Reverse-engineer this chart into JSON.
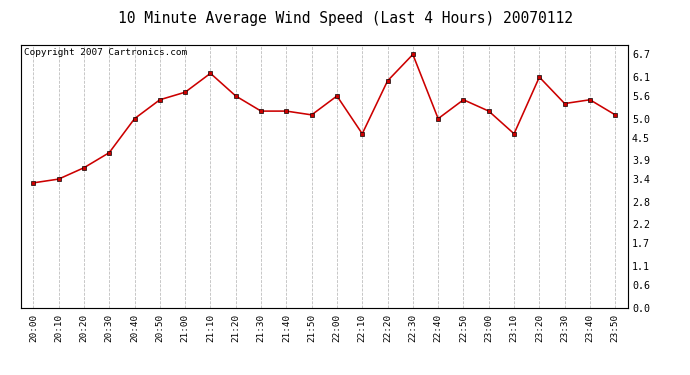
{
  "title": "10 Minute Average Wind Speed (Last 4 Hours) 20070112",
  "copyright": "Copyright 2007 Cartronics.com",
  "x_labels": [
    "20:00",
    "20:10",
    "20:20",
    "20:30",
    "20:40",
    "20:50",
    "21:00",
    "21:10",
    "21:20",
    "21:30",
    "21:40",
    "21:50",
    "22:00",
    "22:10",
    "22:20",
    "22:30",
    "22:40",
    "22:50",
    "23:00",
    "23:10",
    "23:20",
    "23:30",
    "23:40",
    "23:50"
  ],
  "y_values": [
    3.3,
    3.4,
    3.7,
    4.1,
    5.0,
    5.5,
    5.7,
    6.2,
    5.6,
    5.2,
    5.2,
    5.1,
    5.6,
    4.6,
    6.0,
    6.7,
    5.0,
    5.5,
    5.2,
    4.6,
    6.1,
    5.4,
    5.5,
    5.1
  ],
  "y_ticks": [
    0.0,
    0.6,
    1.1,
    1.7,
    2.2,
    2.8,
    3.4,
    3.9,
    4.5,
    5.0,
    5.6,
    6.1,
    6.7
  ],
  "ylim": [
    0.0,
    6.95
  ],
  "line_color": "#cc0000",
  "background_color": "#ffffff",
  "grid_color": "#bbbbbb",
  "title_fontsize": 11,
  "copyright_fontsize": 7,
  "tick_fontsize": 7,
  "ytick_fontsize": 7.5
}
